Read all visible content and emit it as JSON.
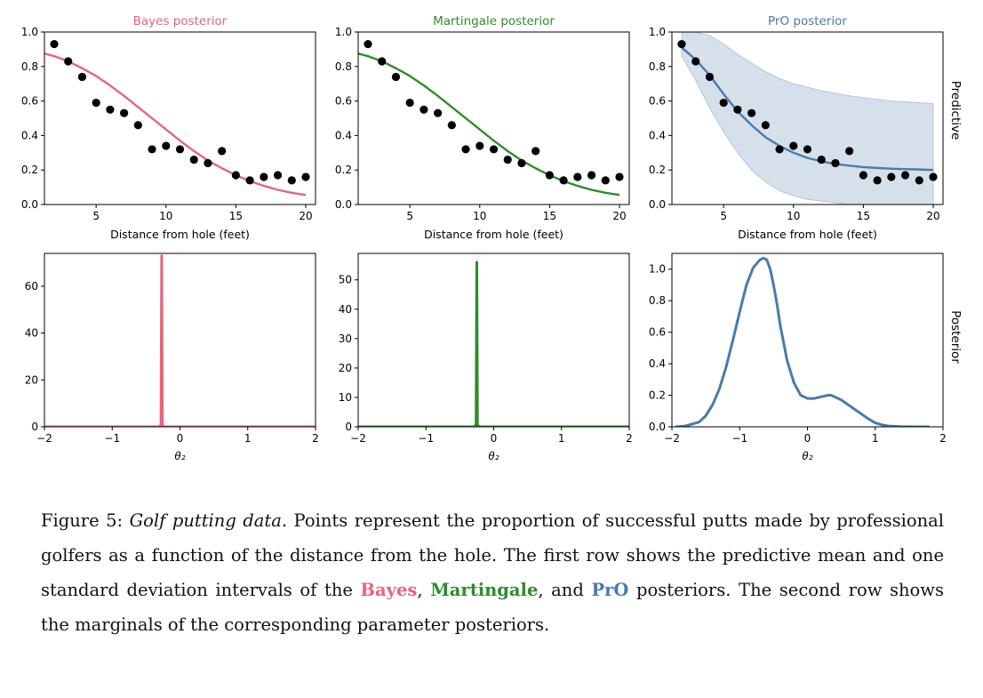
{
  "figure": {
    "colors": {
      "bayes": "#e8647a",
      "martingale": "#2e8b2e",
      "pro": "#4a7aad",
      "band": "#ccd8e6"
    },
    "row_labels": {
      "top": "Predictive",
      "bottom": "Posterior"
    },
    "panels": [
      {
        "title": "Bayes posterior",
        "color_key": "bayes"
      },
      {
        "title": "Martingale posterior",
        "color_key": "martingale"
      },
      {
        "title": "PrO posterior",
        "color_key": "pro"
      }
    ]
  },
  "chart_data": [
    {
      "type": "scatter+line",
      "row": "predictive",
      "panel": 0,
      "title": "Bayes posterior",
      "xlabel": "Distance from hole (feet)",
      "ylabel": "",
      "xlim": [
        1.3,
        20.7
      ],
      "ylim": [
        0,
        1.0
      ],
      "xticks": [
        5,
        10,
        15,
        20
      ],
      "yticks": [
        0.0,
        0.2,
        0.4,
        0.6,
        0.8,
        1.0
      ],
      "ytick_labels": [
        "0.0",
        "0.2",
        "0.4",
        "0.6",
        "0.8",
        "1.0"
      ],
      "points_x": [
        2,
        3,
        4,
        5,
        6,
        7,
        8,
        9,
        10,
        11,
        12,
        13,
        14,
        15,
        16,
        17,
        18,
        19,
        20
      ],
      "points_y": [
        0.93,
        0.83,
        0.74,
        0.59,
        0.55,
        0.53,
        0.46,
        0.32,
        0.34,
        0.32,
        0.26,
        0.24,
        0.31,
        0.17,
        0.14,
        0.16,
        0.17,
        0.14,
        0.16
      ],
      "mean_x": [
        1.3,
        2,
        3,
        4,
        5,
        6,
        7,
        8,
        9,
        10,
        11,
        12,
        13,
        14,
        15,
        16,
        17,
        18,
        19,
        20
      ],
      "mean_y": [
        0.875,
        0.86,
        0.83,
        0.79,
        0.745,
        0.69,
        0.63,
        0.565,
        0.5,
        0.435,
        0.37,
        0.31,
        0.255,
        0.21,
        0.17,
        0.135,
        0.108,
        0.085,
        0.068,
        0.055
      ]
    },
    {
      "type": "scatter+line",
      "row": "predictive",
      "panel": 1,
      "title": "Martingale posterior",
      "xlabel": "Distance from hole (feet)",
      "ylabel": "",
      "xlim": [
        1.3,
        20.7
      ],
      "ylim": [
        0,
        1.0
      ],
      "xticks": [
        5,
        10,
        15,
        20
      ],
      "yticks": [
        0.0,
        0.2,
        0.4,
        0.6,
        0.8,
        1.0
      ],
      "ytick_labels": [
        "0.0",
        "0.2",
        "0.4",
        "0.6",
        "0.8",
        "1.0"
      ],
      "points_x": [
        2,
        3,
        4,
        5,
        6,
        7,
        8,
        9,
        10,
        11,
        12,
        13,
        14,
        15,
        16,
        17,
        18,
        19,
        20
      ],
      "points_y": [
        0.93,
        0.83,
        0.74,
        0.59,
        0.55,
        0.53,
        0.46,
        0.32,
        0.34,
        0.32,
        0.26,
        0.24,
        0.31,
        0.17,
        0.14,
        0.16,
        0.17,
        0.14,
        0.16
      ],
      "mean_x": [
        1.3,
        2,
        3,
        4,
        5,
        6,
        7,
        8,
        9,
        10,
        11,
        12,
        13,
        14,
        15,
        16,
        17,
        18,
        19,
        20
      ],
      "mean_y": [
        0.875,
        0.86,
        0.83,
        0.79,
        0.745,
        0.69,
        0.63,
        0.565,
        0.5,
        0.435,
        0.37,
        0.31,
        0.255,
        0.21,
        0.17,
        0.135,
        0.108,
        0.085,
        0.068,
        0.055
      ]
    },
    {
      "type": "scatter+line+band",
      "row": "predictive",
      "panel": 2,
      "title": "PrO posterior",
      "xlabel": "Distance from hole (feet)",
      "ylabel": "Predictive",
      "xlim": [
        1.3,
        20.7
      ],
      "ylim": [
        0,
        1.0
      ],
      "xticks": [
        5,
        10,
        15,
        20
      ],
      "yticks": [
        0.0,
        0.2,
        0.4,
        0.6,
        0.8,
        1.0
      ],
      "ytick_labels": [
        "0.0",
        "0.2",
        "0.4",
        "0.6",
        "0.8",
        "1.0"
      ],
      "points_x": [
        2,
        3,
        4,
        5,
        6,
        7,
        8,
        9,
        10,
        11,
        12,
        13,
        14,
        15,
        16,
        17,
        18,
        19,
        20
      ],
      "points_y": [
        0.93,
        0.83,
        0.74,
        0.59,
        0.55,
        0.53,
        0.46,
        0.32,
        0.34,
        0.32,
        0.26,
        0.24,
        0.31,
        0.17,
        0.14,
        0.16,
        0.17,
        0.14,
        0.16
      ],
      "mean_x": [
        2,
        3,
        4,
        5,
        6,
        7,
        8,
        9,
        10,
        11,
        12,
        13,
        14,
        15,
        16,
        17,
        18,
        19,
        20
      ],
      "mean_y": [
        0.91,
        0.84,
        0.75,
        0.64,
        0.54,
        0.46,
        0.39,
        0.34,
        0.3,
        0.27,
        0.25,
        0.235,
        0.225,
        0.217,
        0.212,
        0.208,
        0.205,
        0.203,
        0.2
      ],
      "band_x": [
        2,
        3,
        4,
        5,
        6,
        7,
        8,
        9,
        10,
        11,
        12,
        13,
        14,
        15,
        16,
        17,
        18,
        19,
        20
      ],
      "band_upper": [
        1.0,
        1.0,
        0.98,
        0.93,
        0.87,
        0.82,
        0.77,
        0.73,
        0.7,
        0.68,
        0.66,
        0.645,
        0.63,
        0.62,
        0.61,
        0.6,
        0.595,
        0.59,
        0.585
      ],
      "band_lower": [
        0.86,
        0.72,
        0.56,
        0.42,
        0.3,
        0.2,
        0.13,
        0.08,
        0.05,
        0.03,
        0.02,
        0.01,
        0.0,
        0.0,
        0.0,
        0.0,
        0.0,
        0.0,
        0.0
      ]
    },
    {
      "type": "line",
      "row": "posterior",
      "panel": 0,
      "xlabel": "θ₂",
      "ylabel": "",
      "xlim": [
        -2,
        2
      ],
      "ylim": [
        0,
        74
      ],
      "xticks": [
        -2,
        -1,
        0,
        1,
        2
      ],
      "xtick_labels": [
        "−2",
        "−1",
        "0",
        "1",
        "2"
      ],
      "yticks": [
        0,
        20,
        40,
        60
      ],
      "ytick_labels": [
        "0",
        "20",
        "40",
        "60"
      ],
      "x": [
        -2,
        -0.3,
        -0.28,
        -0.275,
        -0.27,
        -0.265,
        -0.26,
        -0.24,
        2
      ],
      "y": [
        0,
        0,
        1,
        40,
        73,
        40,
        1,
        0,
        0
      ]
    },
    {
      "type": "line",
      "row": "posterior",
      "panel": 1,
      "xlabel": "θ₂",
      "ylabel": "",
      "xlim": [
        -2,
        2
      ],
      "ylim": [
        0,
        59
      ],
      "xticks": [
        -2,
        -1,
        0,
        1,
        2
      ],
      "xtick_labels": [
        "−2",
        "−1",
        "0",
        "1",
        "2"
      ],
      "yticks": [
        0,
        10,
        20,
        30,
        40,
        50
      ],
      "ytick_labels": [
        "0",
        "10",
        "20",
        "30",
        "40",
        "50"
      ],
      "x": [
        -2,
        -0.28,
        -0.26,
        -0.255,
        -0.25,
        -0.245,
        -0.24,
        -0.22,
        2
      ],
      "y": [
        0,
        0,
        1,
        30,
        56,
        30,
        1,
        0,
        0
      ]
    },
    {
      "type": "line",
      "row": "posterior",
      "panel": 2,
      "xlabel": "θ₂",
      "ylabel": "Posterior",
      "xlim": [
        -2,
        2
      ],
      "ylim": [
        0,
        1.1
      ],
      "xticks": [
        -2,
        -1,
        0,
        1,
        2
      ],
      "xtick_labels": [
        "−2",
        "−1",
        "0",
        "1",
        "2"
      ],
      "yticks": [
        0.0,
        0.2,
        0.4,
        0.6,
        0.8,
        1.0
      ],
      "ytick_labels": [
        "0.0",
        "0.2",
        "0.4",
        "0.6",
        "0.8",
        "1.0"
      ],
      "x": [
        -1.95,
        -1.8,
        -1.6,
        -1.5,
        -1.4,
        -1.3,
        -1.2,
        -1.1,
        -1.0,
        -0.9,
        -0.8,
        -0.7,
        -0.65,
        -0.6,
        -0.55,
        -0.5,
        -0.45,
        -0.4,
        -0.3,
        -0.2,
        -0.1,
        0.0,
        0.1,
        0.2,
        0.3,
        0.35,
        0.4,
        0.5,
        0.6,
        0.7,
        0.8,
        0.9,
        1.0,
        1.1,
        1.2,
        1.4,
        1.6,
        1.8
      ],
      "y": [
        0.0,
        0.005,
        0.03,
        0.07,
        0.14,
        0.24,
        0.38,
        0.55,
        0.73,
        0.9,
        1.01,
        1.06,
        1.07,
        1.06,
        1.0,
        0.9,
        0.78,
        0.64,
        0.42,
        0.28,
        0.2,
        0.18,
        0.18,
        0.19,
        0.2,
        0.2,
        0.19,
        0.17,
        0.14,
        0.11,
        0.08,
        0.05,
        0.025,
        0.012,
        0.005,
        0.001,
        0.0,
        0.0
      ]
    }
  ],
  "caption": {
    "label": "Figure 5:",
    "title": "Golf putting data",
    "text_1": ". Points represent the proportion of successful putts made by professional golfers as a function of the distance from the hole.  The first row shows the predictive mean and one standard deviation intervals of the ",
    "bayes": "Bayes",
    "sep_1": ", ",
    "martingale": "Martingale",
    "sep_2": ", and ",
    "pro": "PrO",
    "text_2": " posteriors.  The second row shows the marginals of the corresponding parameter posteriors."
  }
}
